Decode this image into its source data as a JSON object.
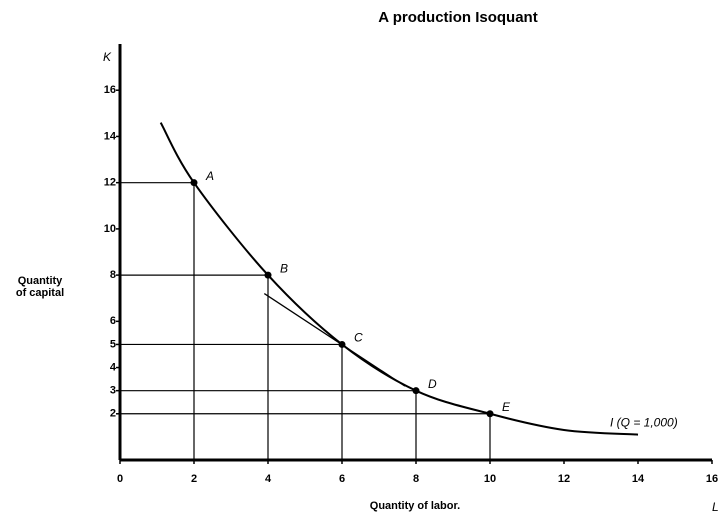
{
  "chart_data": {
    "type": "line",
    "title": "A production Isoquant",
    "xlabel": "Quantity of labor.",
    "ylabel": [
      "Quantity",
      "of capital"
    ],
    "x_axis_letter": "L",
    "y_axis_letter": "K",
    "xlim": [
      0,
      16
    ],
    "ylim": [
      0,
      18
    ],
    "xticks": [
      0,
      2,
      4,
      6,
      8,
      10,
      12,
      14,
      16
    ],
    "yticks": [
      2,
      3,
      4,
      5,
      6,
      8,
      10,
      12,
      14,
      16
    ],
    "series": [
      {
        "name": "I (Q = 1,000)",
        "color": "#000000",
        "x": [
          1.1,
          2,
          4,
          6,
          8,
          10,
          12,
          14
        ],
        "y": [
          14.6,
          12,
          8,
          5,
          3,
          2,
          1.3,
          1.1
        ]
      }
    ],
    "points": {
      "labels": [
        "A",
        "B",
        "C",
        "D",
        "E"
      ],
      "x": [
        2,
        4,
        6,
        8,
        10
      ],
      "y": [
        12,
        8,
        5,
        3,
        2
      ]
    },
    "tangent": {
      "x": [
        3.9,
        7.7
      ],
      "y": [
        7.2,
        3.2
      ]
    }
  }
}
